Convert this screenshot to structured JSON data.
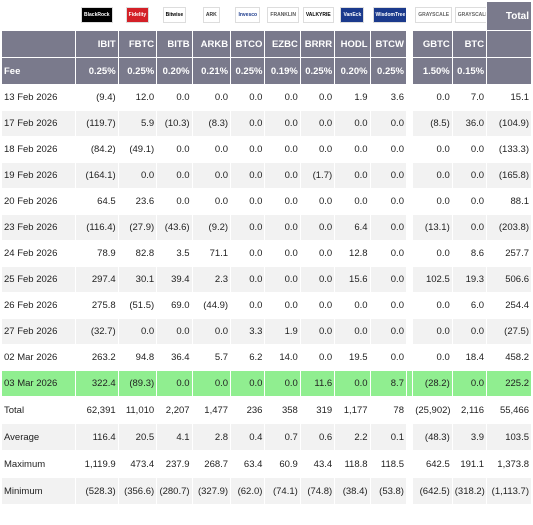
{
  "logos": [
    {
      "text": "BlackRock",
      "bg": "#000000",
      "fg": "#ffffff"
    },
    {
      "text": "Fidelity",
      "bg": "#d42027",
      "fg": "#ffffff"
    },
    {
      "text": "Bitwise",
      "bg": "#ffffff",
      "fg": "#000000"
    },
    {
      "text": "ARK",
      "bg": "#ffffff",
      "fg": "#333333"
    },
    {
      "text": "Invesco",
      "bg": "#ffffff",
      "fg": "#1b3a8c"
    },
    {
      "text": "FRANKLIN",
      "bg": "#ffffff",
      "fg": "#555555"
    },
    {
      "text": "VALKYRIE",
      "bg": "#ffffff",
      "fg": "#000000"
    },
    {
      "text": "VanEck",
      "bg": "#1b3a8c",
      "fg": "#ffffff"
    },
    {
      "text": "WisdomTree",
      "bg": "#1b3a8c",
      "fg": "#ffffff"
    },
    {
      "text": "GRAYSCALE",
      "bg": "#ffffff",
      "fg": "#666666"
    },
    {
      "text": "GRAYSCALE",
      "bg": "#ffffff",
      "fg": "#666666"
    }
  ],
  "total_label": "Total",
  "tickers": [
    "IBIT",
    "FBTC",
    "BITB",
    "ARKB",
    "BTCO",
    "EZBC",
    "BRRR",
    "HODL",
    "BTCW",
    "GBTC",
    "BTC"
  ],
  "fee_label": "Fee",
  "fees": [
    "0.25%",
    "0.25%",
    "0.20%",
    "0.21%",
    "0.25%",
    "0.19%",
    "0.25%",
    "0.20%",
    "0.25%",
    "1.50%",
    "0.15%"
  ],
  "rows": [
    {
      "date": "13 Feb 2026",
      "values": [
        "(9.4)",
        "12.0",
        "0.0",
        "0.0",
        "0.0",
        "0.0",
        "0.0",
        "1.9",
        "3.6",
        "0.0",
        "7.0"
      ],
      "total": "15.1"
    },
    {
      "date": "17 Feb 2026",
      "values": [
        "(119.7)",
        "5.9",
        "(10.3)",
        "(8.3)",
        "0.0",
        "0.0",
        "0.0",
        "0.0",
        "0.0",
        "(8.5)",
        "36.0"
      ],
      "total": "(104.9)"
    },
    {
      "date": "18 Feb 2026",
      "values": [
        "(84.2)",
        "(49.1)",
        "0.0",
        "0.0",
        "0.0",
        "0.0",
        "0.0",
        "0.0",
        "0.0",
        "0.0",
        "0.0"
      ],
      "total": "(133.3)"
    },
    {
      "date": "19 Feb 2026",
      "values": [
        "(164.1)",
        "0.0",
        "0.0",
        "0.0",
        "0.0",
        "0.0",
        "(1.7)",
        "0.0",
        "0.0",
        "0.0",
        "0.0"
      ],
      "total": "(165.8)"
    },
    {
      "date": "20 Feb 2026",
      "values": [
        "64.5",
        "23.6",
        "0.0",
        "0.0",
        "0.0",
        "0.0",
        "0.0",
        "0.0",
        "0.0",
        "0.0",
        "0.0"
      ],
      "total": "88.1"
    },
    {
      "date": "23 Feb 2026",
      "values": [
        "(116.4)",
        "(27.9)",
        "(43.6)",
        "(9.2)",
        "0.0",
        "0.0",
        "0.0",
        "6.4",
        "0.0",
        "(13.1)",
        "0.0"
      ],
      "total": "(203.8)"
    },
    {
      "date": "24 Feb 2026",
      "values": [
        "78.9",
        "82.8",
        "3.5",
        "71.1",
        "0.0",
        "0.0",
        "0.0",
        "12.8",
        "0.0",
        "0.0",
        "8.6"
      ],
      "total": "257.7"
    },
    {
      "date": "25 Feb 2026",
      "values": [
        "297.4",
        "30.1",
        "39.4",
        "2.3",
        "0.0",
        "0.0",
        "0.0",
        "15.6",
        "0.0",
        "102.5",
        "19.3"
      ],
      "total": "506.6"
    },
    {
      "date": "26 Feb 2026",
      "values": [
        "275.8",
        "(51.5)",
        "69.0",
        "(44.9)",
        "0.0",
        "0.0",
        "0.0",
        "0.0",
        "0.0",
        "0.0",
        "6.0"
      ],
      "total": "254.4"
    },
    {
      "date": "27 Feb 2026",
      "values": [
        "(32.7)",
        "0.0",
        "0.0",
        "0.0",
        "3.3",
        "1.9",
        "0.0",
        "0.0",
        "0.0",
        "0.0",
        "0.0"
      ],
      "total": "(27.5)"
    },
    {
      "date": "02 Mar 2026",
      "values": [
        "263.2",
        "94.8",
        "36.4",
        "5.7",
        "6.2",
        "14.0",
        "0.0",
        "19.5",
        "0.0",
        "0.0",
        "18.4"
      ],
      "total": "458.2"
    },
    {
      "date": "03 Mar 2026",
      "values": [
        "322.4",
        "(89.3)",
        "0.0",
        "0.0",
        "0.0",
        "0.0",
        "11.6",
        "0.0",
        "8.7",
        "(28.2)",
        "0.0"
      ],
      "total": "225.2",
      "highlight": true
    }
  ],
  "summary": [
    {
      "label": "Total",
      "values": [
        "62,391",
        "11,010",
        "2,207",
        "1,477",
        "236",
        "358",
        "319",
        "1,177",
        "78",
        "(25,902)",
        "2,116"
      ],
      "total": "55,466"
    },
    {
      "label": "Average",
      "values": [
        "116.4",
        "20.5",
        "4.1",
        "2.8",
        "0.4",
        "0.7",
        "0.6",
        "2.2",
        "0.1",
        "(48.3)",
        "3.9"
      ],
      "total": "103.5"
    },
    {
      "label": "Maximum",
      "values": [
        "1,119.9",
        "473.4",
        "237.9",
        "268.7",
        "63.4",
        "60.9",
        "43.4",
        "118.8",
        "118.5",
        "642.5",
        "191.1"
      ],
      "total": "1,373.8"
    },
    {
      "label": "Minimum",
      "values": [
        "(528.3)",
        "(356.6)",
        "(280.7)",
        "(327.9)",
        "(62.0)",
        "(74.1)",
        "(74.8)",
        "(38.4)",
        "(53.8)",
        "(642.5)",
        "(318.2)"
      ],
      "total": "(1,113.7)"
    }
  ],
  "colors": {
    "header_bg": "#7a7a8c",
    "highlight_bg": "#90ee90",
    "negative": "#d02020"
  }
}
